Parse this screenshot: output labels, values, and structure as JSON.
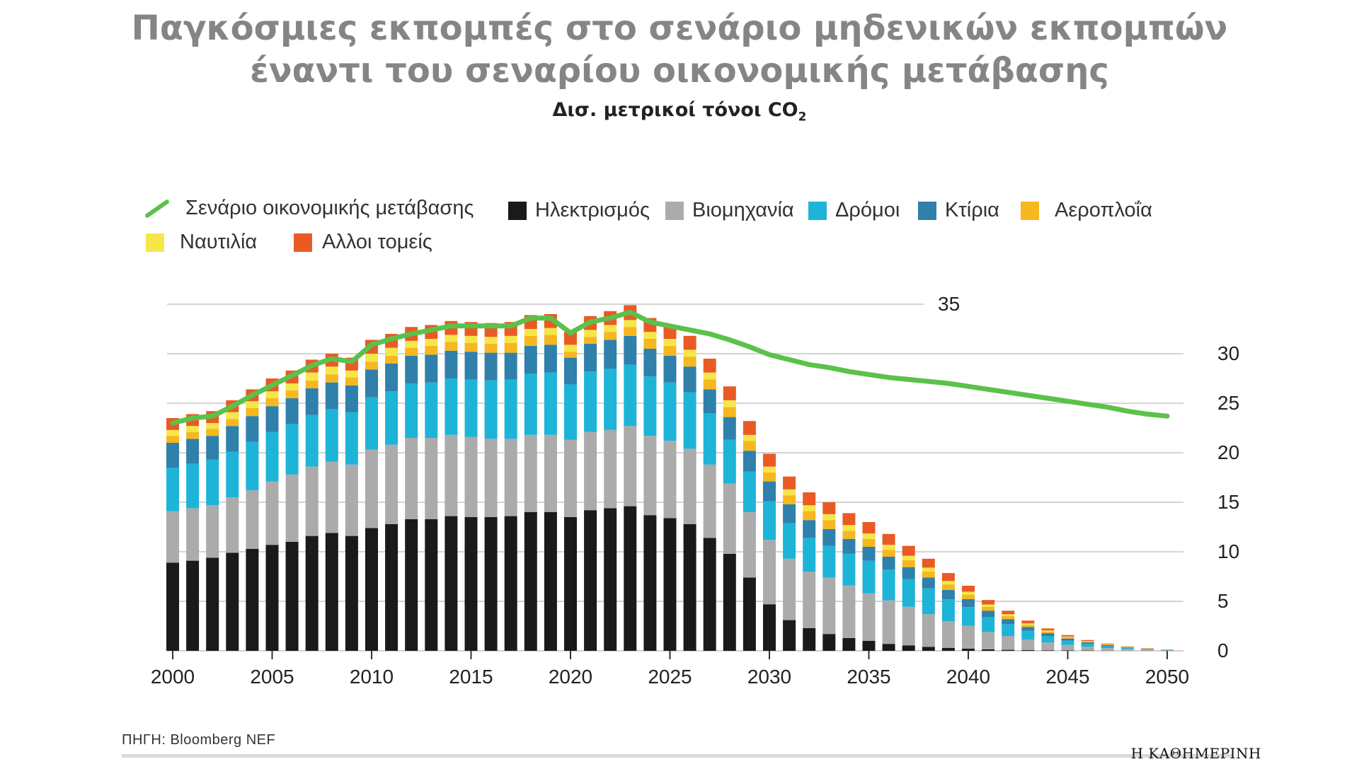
{
  "title_line1": "Παγκόσμιες εκπομπές στο σενάριο μηδενικών εκπομπών",
  "title_line2": "έναντι του σεναρίου οικονομικής μετάβασης",
  "subtitle_main": "Δισ. μετρικοί τόνοι CO",
  "subtitle_sub": "2",
  "source": "ΠΗΓΗ: Bloomberg NEF",
  "brand": "Η ΚΑΘΗΜΕΡΙΝΗ",
  "colors": {
    "line": "#5cc14a",
    "electricity": "#1a1a1a",
    "industry": "#ababab",
    "roads": "#1db4d8",
    "buildings": "#2f80aa",
    "aviation": "#f6b71f",
    "shipping": "#f5e64a",
    "other": "#ea5a24"
  },
  "legend": {
    "line": "Σενάριο οικονομικής μετάβασης",
    "electricity": "Ηλεκτρισμός",
    "industry": "Βιομηχανία",
    "roads": "Δρόμοι",
    "buildings": "Κτίρια",
    "aviation": "Αεροπλοΐα",
    "shipping": "Ναυτιλία",
    "other": "Αλλοι τομείς"
  },
  "chart_data": {
    "type": "bar",
    "stacked": true,
    "x": [
      2000,
      2001,
      2002,
      2003,
      2004,
      2005,
      2006,
      2007,
      2008,
      2009,
      2010,
      2011,
      2012,
      2013,
      2014,
      2015,
      2016,
      2017,
      2018,
      2019,
      2020,
      2021,
      2022,
      2023,
      2024,
      2025,
      2026,
      2027,
      2028,
      2029,
      2030,
      2031,
      2032,
      2033,
      2034,
      2035,
      2036,
      2037,
      2038,
      2039,
      2040,
      2041,
      2042,
      2043,
      2044,
      2045,
      2046,
      2047,
      2048,
      2049,
      2050
    ],
    "x_ticks": [
      "2000",
      "2005",
      "2010",
      "2015",
      "2020",
      "2025",
      "2030",
      "2035",
      "2040",
      "2045",
      "2050"
    ],
    "y_ticks": [
      "0",
      "5",
      "10",
      "15",
      "20",
      "25",
      "30",
      "35"
    ],
    "ylim": [
      0,
      35
    ],
    "grid": true,
    "legend_position": "top",
    "series": [
      {
        "name": "Ηλεκτρισμός",
        "key": "electricity",
        "values": [
          8.9,
          9.1,
          9.4,
          9.9,
          10.3,
          10.7,
          11.0,
          11.6,
          11.9,
          11.6,
          12.4,
          12.8,
          13.3,
          13.3,
          13.6,
          13.5,
          13.5,
          13.6,
          14.0,
          14.0,
          13.5,
          14.2,
          14.4,
          14.6,
          13.7,
          13.4,
          12.8,
          11.4,
          9.8,
          7.4,
          4.7,
          3.1,
          2.3,
          1.7,
          1.3,
          1.0,
          0.7,
          0.55,
          0.4,
          0.3,
          0.22,
          0.15,
          0.1,
          0.07,
          0.05,
          0.04,
          0.03,
          0.02,
          0.01,
          0.01,
          0.0
        ]
      },
      {
        "name": "Βιομηχανία",
        "key": "industry",
        "values": [
          5.2,
          5.3,
          5.3,
          5.6,
          5.9,
          6.4,
          6.8,
          7.0,
          7.2,
          7.2,
          7.9,
          8.0,
          8.2,
          8.2,
          8.2,
          8.1,
          7.9,
          7.8,
          7.8,
          7.8,
          7.8,
          7.9,
          7.9,
          8.1,
          8.0,
          7.8,
          7.6,
          7.4,
          7.1,
          6.6,
          6.5,
          6.2,
          5.7,
          5.7,
          5.3,
          4.8,
          4.4,
          3.9,
          3.3,
          2.7,
          2.3,
          1.75,
          1.4,
          1.05,
          0.8,
          0.55,
          0.38,
          0.25,
          0.15,
          0.08,
          0.04
        ]
      },
      {
        "name": "Δρόμοι",
        "key": "roads",
        "values": [
          4.4,
          4.5,
          4.6,
          4.6,
          4.9,
          5.0,
          5.1,
          5.2,
          5.3,
          5.3,
          5.3,
          5.4,
          5.5,
          5.6,
          5.7,
          5.8,
          5.9,
          6.0,
          6.2,
          6.3,
          5.6,
          6.1,
          6.2,
          6.2,
          6.0,
          5.9,
          5.7,
          5.2,
          4.4,
          4.1,
          3.9,
          3.6,
          3.4,
          3.2,
          3.2,
          3.3,
          3.1,
          2.8,
          2.6,
          2.2,
          1.9,
          1.5,
          1.2,
          0.9,
          0.65,
          0.45,
          0.3,
          0.2,
          0.12,
          0.07,
          0.04
        ]
      },
      {
        "name": "Κτίρια",
        "key": "buildings",
        "values": [
          2.5,
          2.5,
          2.4,
          2.6,
          2.6,
          2.6,
          2.6,
          2.7,
          2.7,
          2.7,
          2.8,
          2.8,
          2.8,
          2.8,
          2.8,
          2.8,
          2.8,
          2.7,
          2.8,
          2.8,
          2.7,
          2.8,
          2.9,
          2.9,
          2.8,
          2.7,
          2.6,
          2.4,
          2.3,
          2.1,
          2.0,
          1.9,
          1.8,
          1.7,
          1.5,
          1.4,
          1.3,
          1.2,
          1.1,
          0.95,
          0.8,
          0.65,
          0.5,
          0.38,
          0.28,
          0.2,
          0.14,
          0.1,
          0.06,
          0.04,
          0.02
        ]
      },
      {
        "name": "Αεροπλοΐα",
        "key": "aviation",
        "values": [
          0.7,
          0.7,
          0.7,
          0.7,
          0.8,
          0.8,
          0.8,
          0.8,
          0.8,
          0.8,
          0.8,
          0.8,
          0.8,
          0.9,
          0.9,
          0.9,
          0.9,
          1.0,
          1.0,
          1.0,
          0.6,
          0.7,
          0.8,
          0.9,
          1.0,
          1.0,
          1.0,
          1.0,
          1.0,
          1.0,
          0.9,
          0.9,
          0.9,
          0.9,
          0.8,
          0.8,
          0.7,
          0.7,
          0.6,
          0.55,
          0.45,
          0.38,
          0.3,
          0.22,
          0.16,
          0.12,
          0.08,
          0.05,
          0.03,
          0.02,
          0.01
        ]
      },
      {
        "name": "Ναυτιλία",
        "key": "shipping",
        "values": [
          0.6,
          0.6,
          0.6,
          0.7,
          0.7,
          0.7,
          0.7,
          0.8,
          0.8,
          0.7,
          0.8,
          0.8,
          0.7,
          0.7,
          0.7,
          0.7,
          0.7,
          0.7,
          0.7,
          0.7,
          0.7,
          0.7,
          0.7,
          0.7,
          0.7,
          0.7,
          0.7,
          0.7,
          0.7,
          0.6,
          0.6,
          0.6,
          0.6,
          0.6,
          0.6,
          0.55,
          0.5,
          0.45,
          0.4,
          0.35,
          0.3,
          0.25,
          0.2,
          0.15,
          0.12,
          0.08,
          0.06,
          0.04,
          0.03,
          0.02,
          0.01
        ]
      },
      {
        "name": "Αλλοι τομείς",
        "key": "other",
        "values": [
          1.2,
          1.2,
          1.2,
          1.2,
          1.2,
          1.3,
          1.3,
          1.3,
          1.3,
          1.3,
          1.4,
          1.4,
          1.4,
          1.4,
          1.4,
          1.4,
          1.4,
          1.4,
          1.4,
          1.4,
          1.3,
          1.4,
          1.4,
          1.5,
          1.4,
          1.4,
          1.4,
          1.4,
          1.4,
          1.4,
          1.3,
          1.3,
          1.3,
          1.2,
          1.2,
          1.15,
          1.1,
          1.0,
          0.9,
          0.8,
          0.6,
          0.45,
          0.35,
          0.28,
          0.2,
          0.15,
          0.1,
          0.07,
          0.05,
          0.03,
          0.02
        ]
      }
    ],
    "line": {
      "name": "Σενάριο οικονομικής μετάβασης",
      "x": [
        2000,
        2001,
        2002,
        2003,
        2004,
        2005,
        2006,
        2007,
        2008,
        2009,
        2010,
        2011,
        2012,
        2013,
        2014,
        2015,
        2016,
        2017,
        2018,
        2019,
        2020,
        2021,
        2022,
        2023,
        2024,
        2025,
        2026,
        2027,
        2028,
        2029,
        2030,
        2031,
        2032,
        2033,
        2034,
        2035,
        2036,
        2037,
        2038,
        2039,
        2040,
        2041,
        2042,
        2043,
        2044,
        2045,
        2046,
        2047,
        2048,
        2049,
        2050
      ],
      "values": [
        23.0,
        23.5,
        23.7,
        24.7,
        25.8,
        26.8,
        27.8,
        28.8,
        29.5,
        29.2,
        30.9,
        31.5,
        32.0,
        32.4,
        32.8,
        32.8,
        32.8,
        32.8,
        33.6,
        33.6,
        32.1,
        33.2,
        33.6,
        34.2,
        33.2,
        32.8,
        32.4,
        32.0,
        31.4,
        30.7,
        29.9,
        29.4,
        28.9,
        28.6,
        28.2,
        27.9,
        27.6,
        27.4,
        27.2,
        27.0,
        26.7,
        26.4,
        26.1,
        25.8,
        25.5,
        25.2,
        24.9,
        24.6,
        24.2,
        23.9,
        23.7
      ]
    }
  }
}
